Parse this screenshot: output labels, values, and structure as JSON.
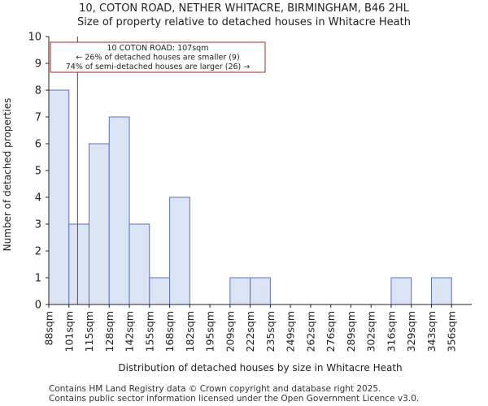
{
  "chart_data": {
    "type": "bar",
    "title": "10, COTON ROAD, NETHER WHITACRE, BIRMINGHAM, B46 2HL",
    "subtitle": "Size of property relative to detached houses in Whitacre Heath",
    "xlabel": "Distribution of detached houses by size in Whitacre Heath",
    "ylabel": "Number of detached properties",
    "categories": [
      "88sqm",
      "101sqm",
      "115sqm",
      "128sqm",
      "142sqm",
      "155sqm",
      "168sqm",
      "182sqm",
      "195sqm",
      "209sqm",
      "222sqm",
      "235sqm",
      "249sqm",
      "262sqm",
      "276sqm",
      "289sqm",
      "302sqm",
      "316sqm",
      "329sqm",
      "343sqm",
      "356sqm"
    ],
    "values": [
      8,
      3,
      6,
      7,
      3,
      1,
      4,
      0,
      0,
      1,
      1,
      0,
      0,
      0,
      0,
      0,
      0,
      1,
      0,
      1,
      0
    ],
    "ylim": [
      0,
      10
    ],
    "yticks": [
      0,
      1,
      2,
      3,
      4,
      5,
      6,
      7,
      8,
      9,
      10
    ],
    "grid": false,
    "bar_color": "#dbe4f5",
    "bar_edge_color": "#5a72c0",
    "marker": {
      "value": 107,
      "unit": "sqm",
      "color": "#b22222",
      "label_lines": [
        "10 COTON ROAD: 107sqm",
        "← 26% of detached houses are smaller (9)",
        "74% of semi-detached houses are larger (26) →"
      ]
    }
  },
  "footer": {
    "line1": "Contains HM Land Registry data © Crown copyright and database right 2025.",
    "line2": "Contains public sector information licensed under the Open Government Licence v3.0."
  }
}
